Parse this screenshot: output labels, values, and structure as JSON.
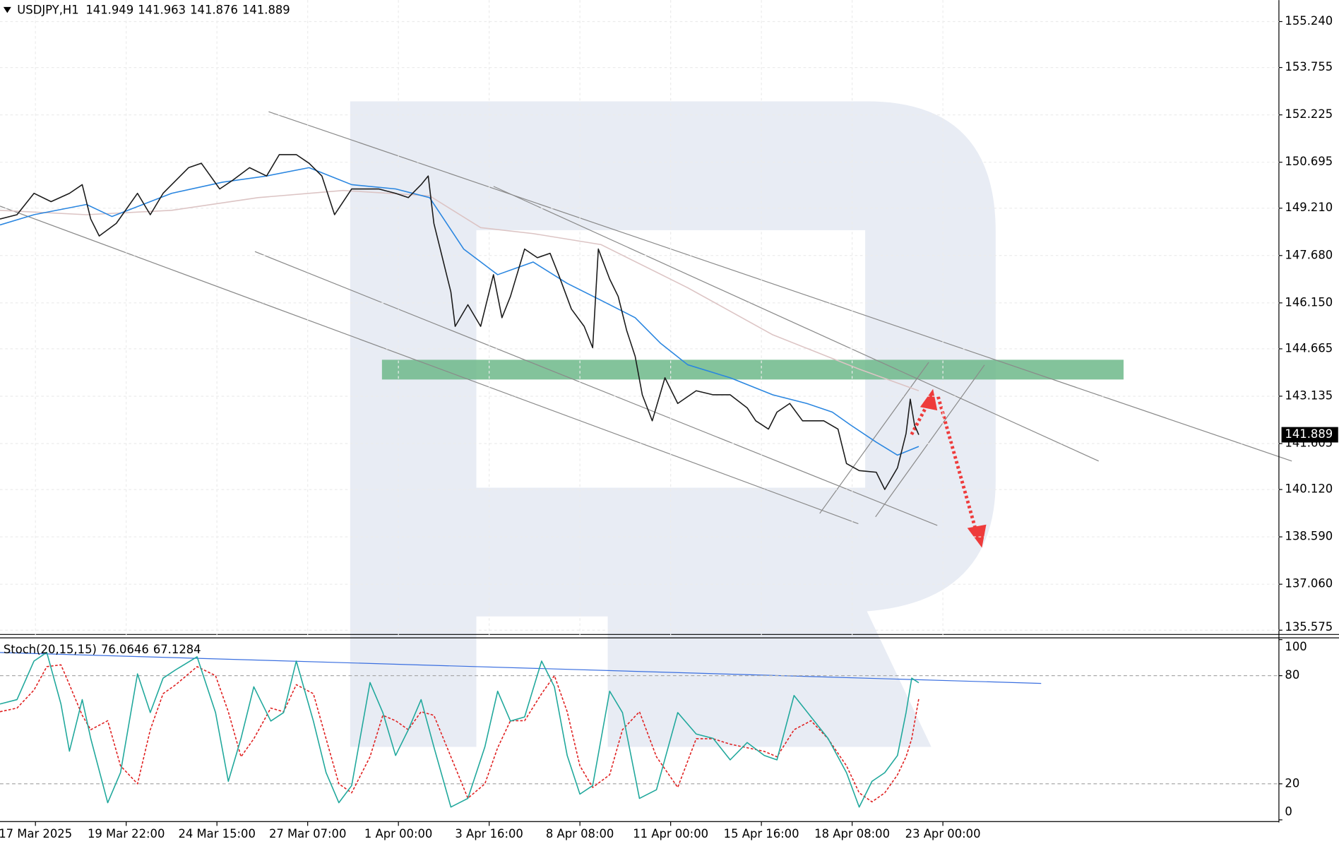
{
  "chart_data": [
    {
      "type": "line",
      "symbol": "USDJPY,H1",
      "quote": [
        141.949,
        141.963,
        141.876,
        141.889
      ],
      "xlim": [
        -25,
        877
      ],
      "xticks": [
        {
          "value": 0,
          "label": "17 Mar 2025"
        },
        {
          "value": 64,
          "label": "19 Mar 22:00"
        },
        {
          "value": 128,
          "label": "24 Mar 15:00"
        },
        {
          "value": 192,
          "label": "27 Mar 07:00"
        },
        {
          "value": 256,
          "label": "1 Apr 00:00"
        },
        {
          "value": 320,
          "label": "3 Apr 16:00"
        },
        {
          "value": 384,
          "label": "8 Apr 08:00"
        },
        {
          "value": 448,
          "label": "11 Apr 00:00"
        },
        {
          "value": 512,
          "label": "15 Apr 16:00"
        },
        {
          "value": 576,
          "label": "18 Apr 08:00"
        },
        {
          "value": 640,
          "label": "23 Apr 00:00"
        }
      ],
      "ylim": [
        135.409,
        155.933
      ],
      "yticks": [
        {
          "value": 155.24,
          "label": "155.240"
        },
        153.755,
        152.225,
        150.695,
        {
          "value": 149.21,
          "label": "149.210"
        },
        {
          "value": 147.68,
          "label": "147.680"
        },
        {
          "value": 146.15,
          "label": "146.150"
        },
        144.665,
        143.135,
        141.605,
        {
          "value": 140.12,
          "label": "140.120"
        },
        {
          "value": 138.59,
          "label": "138.590"
        },
        {
          "value": 137.06,
          "label": "137.060"
        },
        135.575
      ],
      "grid": true,
      "series": [
        {
          "color": "#1a1a1a",
          "x": [
            -25,
            -13,
            -1,
            11,
            24,
            33,
            39,
            45,
            57,
            72,
            81,
            90,
            108,
            117,
            130,
            139,
            151,
            163,
            172,
            184,
            193,
            202,
            211,
            223,
            242,
            254,
            263,
            272,
            277,
            281,
            287,
            293,
            296,
            305,
            314,
            323,
            329,
            335,
            345,
            354,
            363,
            369,
            378,
            387,
            393,
            397,
            405,
            411,
            417,
            423,
            428,
            435,
            444,
            453,
            466,
            478,
            490,
            502,
            508,
            517,
            523,
            532,
            541,
            556,
            566,
            572,
            581,
            593,
            599,
            608,
            614,
            617,
            620,
            623
          ],
          "values": [
            148.86,
            149.0,
            149.69,
            149.42,
            149.69,
            149.97,
            148.86,
            148.31,
            148.72,
            149.69,
            149.0,
            149.69,
            150.52,
            150.66,
            149.83,
            150.11,
            150.52,
            150.25,
            150.94,
            150.94,
            150.66,
            150.25,
            149.0,
            149.83,
            149.83,
            149.69,
            149.55,
            149.97,
            150.25,
            148.72,
            147.61,
            146.5,
            145.39,
            146.09,
            145.39,
            147.06,
            145.67,
            146.36,
            147.89,
            147.61,
            147.75,
            147.06,
            145.95,
            145.39,
            144.7,
            147.89,
            146.92,
            146.36,
            145.26,
            144.42,
            143.18,
            142.34,
            143.73,
            142.9,
            143.31,
            143.18,
            143.18,
            142.76,
            142.34,
            142.07,
            142.62,
            142.9,
            142.34,
            142.34,
            142.07,
            140.96,
            140.73,
            140.68,
            140.12,
            140.82,
            141.93,
            143.04,
            142.2,
            141.889
          ]
        },
        {
          "color": "#2a86e0",
          "x": [
            -25,
            -1,
            36,
            54,
            96,
            132,
            163,
            193,
            223,
            254,
            278,
            302,
            326,
            351,
            375,
            399,
            423,
            441,
            460,
            490,
            520,
            544,
            562,
            575,
            593,
            608,
            623
          ],
          "values": [
            148.67,
            149.0,
            149.33,
            148.94,
            149.69,
            150.05,
            150.25,
            150.52,
            149.97,
            149.83,
            149.55,
            147.89,
            147.06,
            147.47,
            146.78,
            146.23,
            145.67,
            144.84,
            144.15,
            143.73,
            143.18,
            142.9,
            142.62,
            142.2,
            141.65,
            141.23,
            141.51
          ]
        },
        {
          "color": "#dcc4c4",
          "x": [
            -25,
            36,
            96,
            157,
            217,
            278,
            314,
            351,
            399,
            460,
            520,
            581,
            623
          ],
          "values": [
            149.14,
            149.0,
            149.14,
            149.55,
            149.78,
            149.61,
            148.58,
            148.39,
            148.03,
            146.64,
            145.12,
            144.01,
            143.31
          ]
        }
      ]
    },
    {
      "type": "line",
      "indicator": "Stoch(20,15,15)",
      "readings": [
        76.0646,
        67.1284
      ],
      "xlim": [
        -25,
        877
      ],
      "ylim": [
        0,
        100
      ],
      "yticks": [
        0,
        20,
        80,
        100
      ],
      "series": [
        {
          "color": "#20a89c",
          "dash": false,
          "x": [
            -25,
            -13,
            -1,
            8,
            18,
            24,
            33,
            39,
            51,
            60,
            72,
            81,
            90,
            99,
            114,
            127,
            136,
            145,
            154,
            166,
            175,
            184,
            196,
            205,
            214,
            223,
            236,
            245,
            254,
            263,
            272,
            281,
            293,
            305,
            317,
            326,
            335,
            345,
            357,
            366,
            375,
            384,
            393,
            405,
            414,
            426,
            438,
            453,
            466,
            478,
            490,
            502,
            514,
            523,
            535,
            547,
            559,
            572,
            581,
            590,
            599,
            608,
            614,
            618,
            623
          ],
          "values": [
            64.3,
            66.7,
            88.1,
            92.9,
            64.3,
            38.1,
            66.7,
            45.2,
            9.5,
            26.2,
            81.0,
            59.5,
            78.6,
            83.3,
            90.5,
            59.5,
            21.4,
            45.2,
            73.8,
            54.8,
            59.5,
            88.1,
            54.8,
            26.2,
            9.5,
            19.0,
            76.2,
            59.5,
            35.7,
            50.0,
            66.7,
            40.5,
            7.1,
            11.9,
            40.5,
            71.4,
            54.8,
            57.1,
            88.1,
            73.8,
            35.7,
            14.3,
            19.0,
            71.4,
            59.5,
            11.9,
            16.7,
            59.5,
            47.6,
            45.2,
            33.3,
            42.9,
            35.7,
            33.3,
            69.0,
            57.1,
            45.2,
            26.2,
            7.1,
            21.4,
            26.2,
            35.7,
            59.5,
            78.6,
            76.0646
          ]
        },
        {
          "color": "#e02020",
          "dash": true,
          "x": [
            -25,
            -13,
            -1,
            8,
            18,
            24,
            33,
            39,
            51,
            60,
            72,
            81,
            90,
            99,
            114,
            127,
            136,
            145,
            154,
            166,
            175,
            184,
            196,
            205,
            214,
            223,
            236,
            245,
            254,
            263,
            272,
            281,
            293,
            305,
            317,
            326,
            335,
            345,
            357,
            366,
            375,
            384,
            393,
            405,
            414,
            426,
            438,
            453,
            466,
            478,
            490,
            502,
            514,
            523,
            535,
            547,
            559,
            572,
            581,
            590,
            599,
            608,
            614,
            618,
            623
          ],
          "values": [
            60,
            62,
            72,
            85,
            86,
            75,
            58,
            50,
            55,
            30,
            20,
            50,
            70,
            75,
            85,
            80,
            60,
            35,
            45,
            62,
            60,
            75,
            70,
            45,
            20,
            15,
            35,
            58,
            55,
            50,
            60,
            58,
            35,
            12,
            20,
            40,
            55,
            55,
            70,
            80,
            60,
            30,
            18,
            25,
            50,
            60,
            35,
            18,
            45,
            45,
            42,
            40,
            38,
            35,
            50,
            55,
            45,
            30,
            15,
            10,
            15,
            25,
            35,
            45,
            67.1284
          ]
        }
      ]
    }
  ]
}
